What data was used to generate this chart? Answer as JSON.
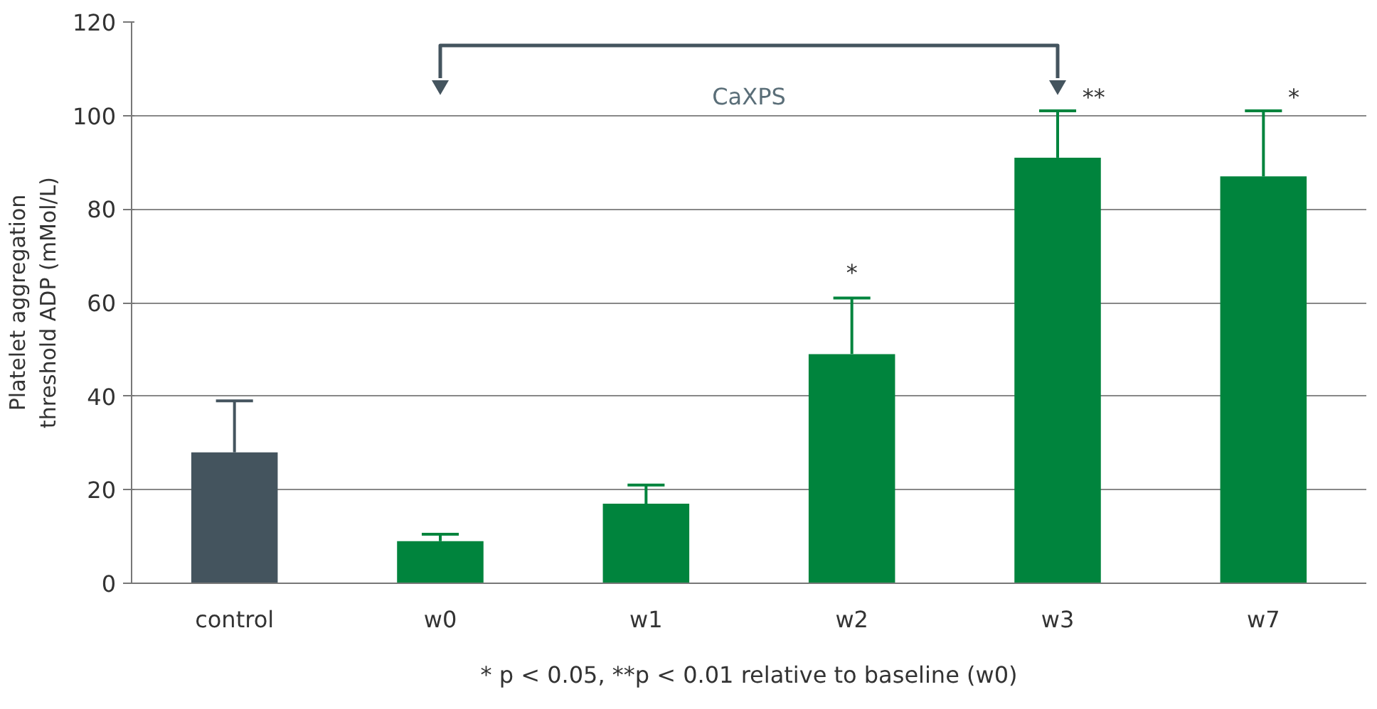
{
  "chart_data": {
    "type": "bar",
    "ylabel": "Platelet aggregation\nthreshold ADP (mMol/L)",
    "categories": [
      "control",
      "w0",
      "w1",
      "w2",
      "w3",
      "w7"
    ],
    "values": [
      28,
      9,
      17,
      49,
      91,
      87
    ],
    "colors": [
      "#44545e",
      "#00843d",
      "#00843d",
      "#00843d",
      "#00843d",
      "#00843d"
    ],
    "errors": [
      [
        28,
        39
      ],
      [
        9,
        10.5
      ],
      [
        17,
        21
      ],
      [
        49,
        61
      ],
      [
        91,
        101
      ],
      [
        87,
        101
      ]
    ],
    "ylim": [
      0,
      120
    ],
    "yticks": [
      0,
      20,
      40,
      60,
      80,
      100,
      120
    ],
    "grid": "y",
    "annotations": [
      {
        "text": "*",
        "x": "w2",
        "y": 61
      },
      {
        "text": "**",
        "x": "w3",
        "y": 101
      },
      {
        "text": "*",
        "x": "w7",
        "y": 101
      },
      "CaXPS",
      "* p < 0.05, **p < 0.01 relative to baseline (w0)"
    ]
  }
}
